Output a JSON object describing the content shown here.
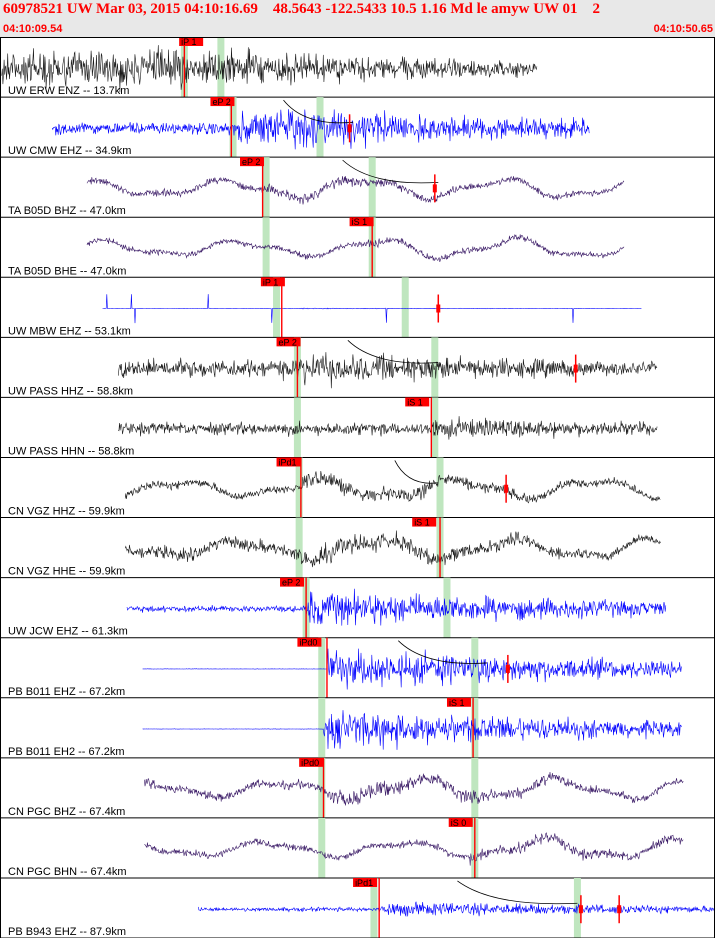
{
  "header": {
    "title": "60978521 UW Mar 03, 2015 04:10:16.69    48.5643 -122.5433 10.5 1.16 Md le amyw UW 01    2",
    "start_time": "04:10:09.54",
    "end_time": "04:10:50.65"
  },
  "colors": {
    "header_bg": "#e8e8e8",
    "title_text": "#ff0000",
    "pick_marker": "#ff0000",
    "pick_window": "#bfe6bf",
    "travel_curve": "#000000",
    "trace_colors": {
      "black": "#1a1a1a",
      "blue": "#0000ff",
      "purple": "#3a1a66"
    }
  },
  "chart_data": {
    "type": "line",
    "xlim": [
      0,
      41.11
    ],
    "xunit": "seconds after 04:10:09.54",
    "traces": [
      {
        "label": "UW ERW ENZ -- 13.7km",
        "color": "black",
        "start": 0.1,
        "end": 30.9,
        "pre": 0.9,
        "post": 0.9,
        "style": "noise",
        "onset": 10.5,
        "picks": [
          {
            "label": "iP 1",
            "t": 10.3,
            "line": 10.6
          }
        ],
        "windows": [
          10.6,
          12.7
        ],
        "curve": null,
        "extra": []
      },
      {
        "label": "UW CMW EHZ -- 34.9km",
        "color": "blue",
        "start": 3.0,
        "end": 33.9,
        "pre": 0.3,
        "post": 1.0,
        "style": "noise",
        "onset": 13.6,
        "picks": [
          {
            "label": "eP 2",
            "t": 12.1,
            "line": 13.3
          }
        ],
        "windows": [
          13.4,
          18.4
        ],
        "curve": [
          16.3,
          20.3
        ],
        "extra": [
          20.1
        ]
      },
      {
        "label": "TA B05D BHZ -- 47.0km",
        "color": "purple",
        "start": 5.0,
        "end": 35.9,
        "pre": 0.25,
        "post": 0.4,
        "style": "wave",
        "onset": 15.4,
        "picks": [
          {
            "label": "eP 2",
            "t": 13.8,
            "line": 15.1
          }
        ],
        "windows": [
          15.3,
          21.4
        ],
        "curve": [
          19.7,
          25.2
        ],
        "extra": [
          25.0
        ]
      },
      {
        "label": "TA B05D BHE -- 47.0km",
        "color": "purple",
        "start": 5.0,
        "end": 35.9,
        "pre": 0.2,
        "post": 0.3,
        "style": "wave",
        "onset": 21.0,
        "picks": [
          {
            "label": "iS 1",
            "t": 20.1,
            "line": 21.4
          }
        ],
        "windows": [
          15.3,
          21.4
        ],
        "curve": null,
        "extra": []
      },
      {
        "label": "UW MBW EHZ -- 53.1km",
        "color": "blue",
        "start": 5.9,
        "end": 36.9,
        "pre": 0.02,
        "post": 0.05,
        "style": "spiky",
        "onset": 16.2,
        "picks": [
          {
            "label": "iP 1",
            "t": 15.0,
            "line": 16.2
          }
        ],
        "windows": [
          15.9,
          23.3
        ],
        "curve": null,
        "extra": [
          25.2
        ]
      },
      {
        "label": "UW PASS HHZ -- 58.8km",
        "color": "black",
        "start": 6.8,
        "end": 37.8,
        "pre": 0.45,
        "post": 0.75,
        "style": "noise",
        "onset": 17.1,
        "picks": [
          {
            "label": "eP 2",
            "t": 15.9,
            "line": 17.1
          }
        ],
        "windows": [
          17.1,
          25.0
        ],
        "curve": [
          20.0,
          25.2
        ],
        "extra": [
          33.1
        ]
      },
      {
        "label": "UW PASS HHN -- 58.8km",
        "color": "black",
        "start": 6.8,
        "end": 37.8,
        "pre": 0.3,
        "post": 0.5,
        "style": "noise",
        "onset": 24.8,
        "picks": [
          {
            "label": "iS 1",
            "t": 23.3,
            "line": 24.8
          }
        ],
        "windows": [
          17.1,
          25.0
        ],
        "curve": null,
        "extra": []
      },
      {
        "label": "CN VGZ HHZ -- 59.9km",
        "color": "black",
        "start": 7.2,
        "end": 38.0,
        "pre": 0.3,
        "post": 0.6,
        "style": "wave",
        "onset": 17.3,
        "picks": [
          {
            "label": "iPd1",
            "t": 15.9,
            "line": 17.3
          }
        ],
        "windows": [
          17.2,
          25.3
        ],
        "curve": [
          22.7,
          25.2
        ],
        "extra": [
          29.1
        ]
      },
      {
        "label": "CN VGZ HHE -- 59.9km",
        "color": "black",
        "start": 7.2,
        "end": 38.0,
        "pre": 0.45,
        "post": 0.7,
        "style": "wave",
        "onset": 17.3,
        "picks": [
          {
            "label": "iS 1",
            "t": 23.7,
            "line": 25.3
          }
        ],
        "windows": [
          17.2,
          25.3
        ],
        "curve": null,
        "extra": []
      },
      {
        "label": "UW JCW EHZ -- 61.3km",
        "color": "blue",
        "start": 7.3,
        "end": 38.3,
        "pre": 0.15,
        "post": 0.85,
        "style": "noise",
        "onset": 17.6,
        "picks": [
          {
            "label": "eP 2",
            "t": 16.1,
            "line": 17.6
          }
        ],
        "windows": [
          17.6,
          25.7
        ],
        "curve": null,
        "extra": []
      },
      {
        "label": "PB B011 EHZ -- 67.2km",
        "color": "blue",
        "start": 8.2,
        "end": 39.2,
        "pre": 0.01,
        "post": 0.9,
        "style": "noise",
        "onset": 18.8,
        "picks": [
          {
            "label": "iPd0",
            "t": 17.1,
            "line": 18.8
          }
        ],
        "windows": [
          18.5,
          27.3
        ],
        "curve": [
          22.9,
          28.0
        ],
        "extra": [
          29.2
        ]
      },
      {
        "label": "PB B011 EH2 -- 67.2km",
        "color": "blue",
        "start": 8.2,
        "end": 39.2,
        "pre": 0.01,
        "post": 0.9,
        "style": "noise",
        "onset": 18.6,
        "picks": [
          {
            "label": "iS 1",
            "t": 25.7,
            "line": 27.2
          }
        ],
        "windows": [
          18.5,
          27.3
        ],
        "curve": null,
        "extra": []
      },
      {
        "label": "CN PGC BHZ -- 67.4km",
        "color": "purple",
        "start": 8.3,
        "end": 39.3,
        "pre": 0.3,
        "post": 0.6,
        "style": "wave",
        "onset": 18.6,
        "picks": [
          {
            "label": "iPd0",
            "t": 17.2,
            "line": 18.6
          }
        ],
        "windows": [
          18.5,
          27.3
        ],
        "curve": null,
        "extra": []
      },
      {
        "label": "CN PGC BHN -- 67.4km",
        "color": "purple",
        "start": 8.3,
        "end": 39.3,
        "pre": 0.25,
        "post": 0.45,
        "style": "wave",
        "onset": 27.0,
        "picks": [
          {
            "label": "iS 0",
            "t": 25.8,
            "line": 27.3
          }
        ],
        "windows": [
          18.5,
          27.3
        ],
        "curve": null,
        "extra": []
      },
      {
        "label": "PB B943 EHZ -- 87.9km",
        "color": "blue",
        "start": 11.4,
        "end": 42.0,
        "pre": 0.1,
        "post": 0.35,
        "style": "noise",
        "onset": 21.8,
        "picks": [
          {
            "label": "iPd1",
            "t": 20.3,
            "line": 21.8
          }
        ],
        "windows": [
          21.5,
          33.2
        ],
        "curve": [
          26.3,
          33.2
        ],
        "extra": [
          33.4,
          35.6
        ]
      }
    ]
  }
}
